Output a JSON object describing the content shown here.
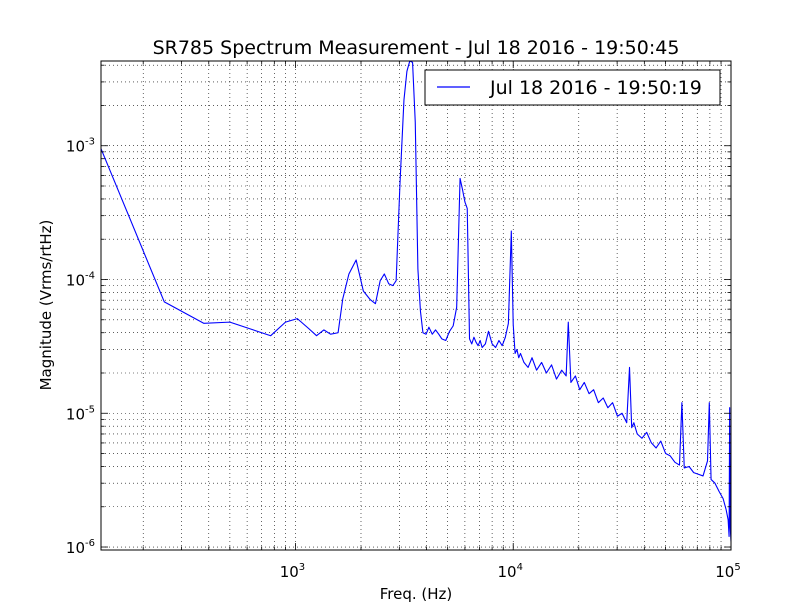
{
  "chart_data": {
    "type": "line",
    "title": "SR785 Spectrum Measurement - Jul 18 2016 - 19:50:45",
    "xlabel": "Freq. (Hz)",
    "ylabel": "Magnitude (Vrms/rtHz)",
    "xscale": "log",
    "yscale": "log",
    "xlim": [
      128,
      100000
    ],
    "ylim": [
      9.5e-07,
      0.0043
    ],
    "grid": true,
    "legend_position": "top-right",
    "xticks": [
      {
        "value": 1000,
        "base": "10",
        "exp": "3"
      },
      {
        "value": 10000,
        "base": "10",
        "exp": "4"
      },
      {
        "value": 100000,
        "base": "10",
        "exp": "5"
      }
    ],
    "yticks": [
      {
        "value": 1e-06,
        "base": "10",
        "exp": "-6"
      },
      {
        "value": 1e-05,
        "base": "10",
        "exp": "-5"
      },
      {
        "value": 0.0001,
        "base": "10",
        "exp": "-4"
      },
      {
        "value": 0.001,
        "base": "10",
        "exp": "-3"
      }
    ],
    "series": [
      {
        "name": "Jul 18 2016 - 19:50:19",
        "color": "#0000ff",
        "x": [
          128,
          250,
          380,
          500,
          640,
          770,
          900,
          1020,
          1150,
          1250,
          1350,
          1450,
          1570,
          1650,
          1760,
          1900,
          2050,
          2200,
          2330,
          2450,
          2560,
          2680,
          2800,
          2900,
          3020,
          3150,
          3250,
          3350,
          3450,
          3550,
          3650,
          3750,
          3850,
          3980,
          4100,
          4250,
          4400,
          4550,
          4700,
          4900,
          5100,
          5300,
          5500,
          5700,
          5850,
          6000,
          6150,
          6300,
          6450,
          6600,
          6750,
          6900,
          7050,
          7200,
          7450,
          7700,
          8000,
          8300,
          8600,
          8900,
          9200,
          9500,
          9800,
          10000,
          10200,
          10400,
          10600,
          10800,
          11200,
          11700,
          12200,
          12800,
          13500,
          14200,
          15000,
          15800,
          16700,
          17500,
          17900,
          18400,
          19300,
          20200,
          21200,
          22300,
          23400,
          24600,
          25900,
          27200,
          28600,
          30100,
          31600,
          33200,
          34200,
          35000,
          35800,
          37100,
          39000,
          41000,
          43100,
          45300,
          47600,
          50100,
          52600,
          55300,
          58000,
          59500,
          61000,
          64200,
          67400,
          70800,
          74400,
          78000,
          79500,
          81000,
          84400,
          88200,
          92000,
          95000,
          97000,
          98000,
          98600,
          99200,
          100000
        ],
        "y": [
          0.00095,
          6.8e-05,
          4.7e-05,
          4.8e-05,
          4.2e-05,
          3.8e-05,
          4.8e-05,
          5.1e-05,
          4.3e-05,
          3.8e-05,
          4.2e-05,
          3.9e-05,
          4e-05,
          7.2e-05,
          0.00011,
          0.00014,
          8.2e-05,
          7.1e-05,
          6.6e-05,
          9.8e-05,
          0.00011,
          9.3e-05,
          9e-05,
          9.8e-05,
          0.00052,
          0.0022,
          0.0036,
          0.0043,
          0.0042,
          0.0015,
          0.00012,
          5.8e-05,
          4e-05,
          3.9e-05,
          4.4e-05,
          3.9e-05,
          4.2e-05,
          3.9e-05,
          3.6e-05,
          3.5e-05,
          4.1e-05,
          4.5e-05,
          6.2e-05,
          0.00057,
          0.00047,
          0.00038,
          0.00034,
          3.6e-05,
          3.3e-05,
          3.7e-05,
          3.4e-05,
          3.2e-05,
          3.5e-05,
          3.1e-05,
          3.3e-05,
          4.1e-05,
          3.3e-05,
          3.1e-05,
          3.5e-05,
          3.2e-05,
          3.7e-05,
          4.7e-05,
          0.00023,
          4.6e-05,
          2.8e-05,
          3e-05,
          2.6e-05,
          2.8e-05,
          2.4e-05,
          2.2e-05,
          2.6e-05,
          2.1e-05,
          2.4e-05,
          2e-05,
          2.3e-05,
          1.8e-05,
          2.1e-05,
          1.9e-05,
          4.8e-05,
          1.7e-05,
          1.9e-05,
          1.5e-05,
          1.7e-05,
          1.4e-05,
          1.5e-05,
          1.2e-05,
          1.3e-05,
          1.1e-05,
          1.2e-05,
          9.5e-06,
          1e-05,
          8.5e-06,
          2.2e-05,
          7.8e-06,
          8.5e-06,
          7e-06,
          6.5e-06,
          7.2e-06,
          6e-06,
          5.5e-06,
          6.2e-06,
          5e-06,
          4.8e-06,
          4.3e-06,
          4.1e-06,
          1.2e-05,
          3.9e-06,
          4e-06,
          3.6e-06,
          3.5e-06,
          3.4e-06,
          4.4e-06,
          1.2e-05,
          3.2e-06,
          3e-06,
          2.6e-06,
          2.3e-06,
          1.9e-06,
          1.6e-06,
          1.2e-06,
          1.1e-05,
          1.4e-06,
          1.1e-06
        ]
      }
    ]
  }
}
